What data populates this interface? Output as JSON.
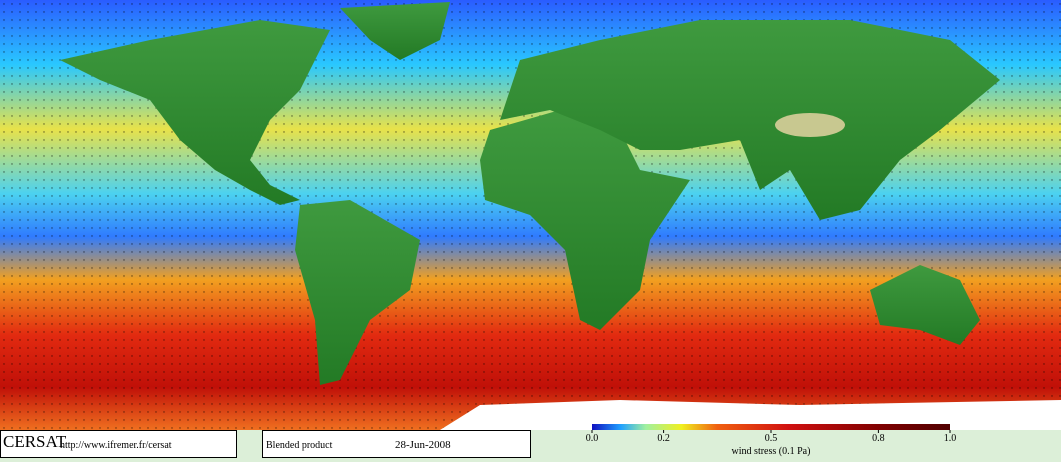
{
  "footer": {
    "logo": "CERSAT",
    "url": "http://www.ifremer.fr/cersat",
    "product": "Blended product",
    "date": "28-Jun-2008"
  },
  "colorbar": {
    "label": "wind stress (0.1 Pa)",
    "lim": [
      0,
      1
    ],
    "ticks": [
      {
        "value": 0,
        "label": "0.0"
      },
      0.2,
      0.5,
      0.8,
      {
        "value": 1,
        "label": "1.0"
      }
    ]
  }
}
